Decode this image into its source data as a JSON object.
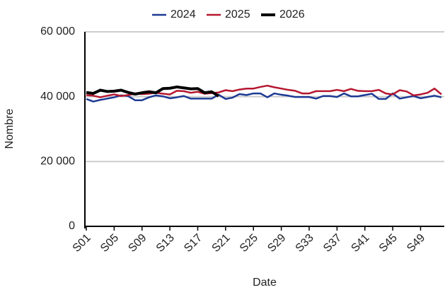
{
  "chart_data": {
    "type": "line",
    "x_label": "Date",
    "y_label": "Nombre",
    "categories": [
      "S01",
      null,
      null,
      null,
      "S05",
      null,
      null,
      null,
      "S09",
      null,
      null,
      null,
      "S13",
      null,
      null,
      null,
      "S17",
      null,
      null,
      null,
      "S21",
      null,
      null,
      null,
      "S25",
      null,
      null,
      null,
      "S29",
      null,
      null,
      null,
      "S33",
      null,
      null,
      null,
      "S37",
      null,
      null,
      null,
      "S41",
      null,
      null,
      null,
      "S45",
      null,
      null,
      null,
      "S49",
      null,
      null,
      null
    ],
    "series": [
      {
        "name": "2024",
        "color": "#1c3a94",
        "width": 2.5,
        "values": [
          39300,
          38500,
          39000,
          39400,
          39800,
          40400,
          40200,
          38900,
          38900,
          39800,
          40400,
          40100,
          39500,
          39800,
          40200,
          39400,
          39400,
          39400,
          39400,
          40600,
          39300,
          39700,
          40800,
          40500,
          41000,
          41000,
          39800,
          41000,
          40600,
          40300,
          39900,
          39900,
          39900,
          39400,
          40200,
          40200,
          39900,
          41000,
          40100,
          40100,
          40500,
          40900,
          39300,
          39300,
          41000,
          39400,
          39800,
          40200,
          39500,
          39900,
          40300,
          39800
        ]
      },
      {
        "name": "2025",
        "color": "#b5172f",
        "width": 2.5,
        "values": [
          40500,
          40300,
          39800,
          40300,
          40700,
          40200,
          40500,
          40900,
          40800,
          40900,
          41200,
          40900,
          40700,
          41800,
          41700,
          41200,
          41500,
          40900,
          41100,
          41300,
          42000,
          41700,
          42200,
          42500,
          42500,
          43000,
          43400,
          42900,
          42500,
          42100,
          41800,
          41000,
          41000,
          41700,
          41700,
          41700,
          42100,
          41700,
          42400,
          41800,
          41700,
          41700,
          42100,
          41000,
          40700,
          42000,
          41600,
          40400,
          40700,
          41200,
          42500,
          40700
        ]
      },
      {
        "name": "2026",
        "color": "#000000",
        "width": 4,
        "values": [
          41300,
          41000,
          42000,
          41600,
          41700,
          42000,
          41300,
          40800,
          41200,
          41500,
          41200,
          42500,
          42600,
          43000,
          42700,
          42400,
          42500,
          41200,
          41500,
          40200,
          null,
          null,
          null,
          null,
          null,
          null,
          null,
          null,
          null,
          null,
          null,
          null,
          null,
          null,
          null,
          null,
          null,
          null,
          null,
          null,
          null,
          null,
          null,
          null,
          null,
          null,
          null,
          null,
          null,
          null,
          null,
          null
        ]
      }
    ],
    "ylim": [
      0,
      60000
    ],
    "yticks": [
      0,
      {
        "value": 20000,
        "label": "20 000"
      },
      {
        "value": 40000,
        "label": "40 000"
      },
      {
        "value": 60000,
        "label": "60 000"
      }
    ],
    "grid": true,
    "legend": "top"
  }
}
